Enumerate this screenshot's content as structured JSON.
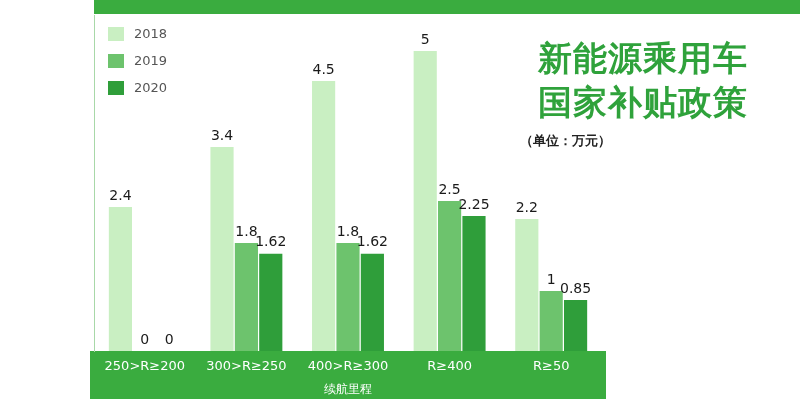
{
  "chart_data": {
    "type": "bar",
    "title": [
      "新能源乘用车",
      "国家补贴政策"
    ],
    "subtitle": "（单位：万元）",
    "x_label": "续航里程",
    "categories": [
      "250>R≥200",
      "300>R≥250",
      "400>R≥300",
      "R≥400",
      "R≥50"
    ],
    "series": [
      {
        "name": "2018",
        "color": "#c9efc2",
        "values": [
          2.4,
          3.4,
          4.5,
          5,
          2.2
        ]
      },
      {
        "name": "2019",
        "color": "#6dc36d",
        "values": [
          0,
          1.8,
          1.8,
          2.5,
          1
        ]
      },
      {
        "name": "2020",
        "color": "#2f9e3a",
        "values": [
          0,
          1.62,
          1.62,
          2.25,
          0.85
        ]
      }
    ],
    "ylim": [
      0,
      5.6
    ],
    "grid": false,
    "legend": "top-left",
    "data_labels": true,
    "tick_labels": "x"
  }
}
